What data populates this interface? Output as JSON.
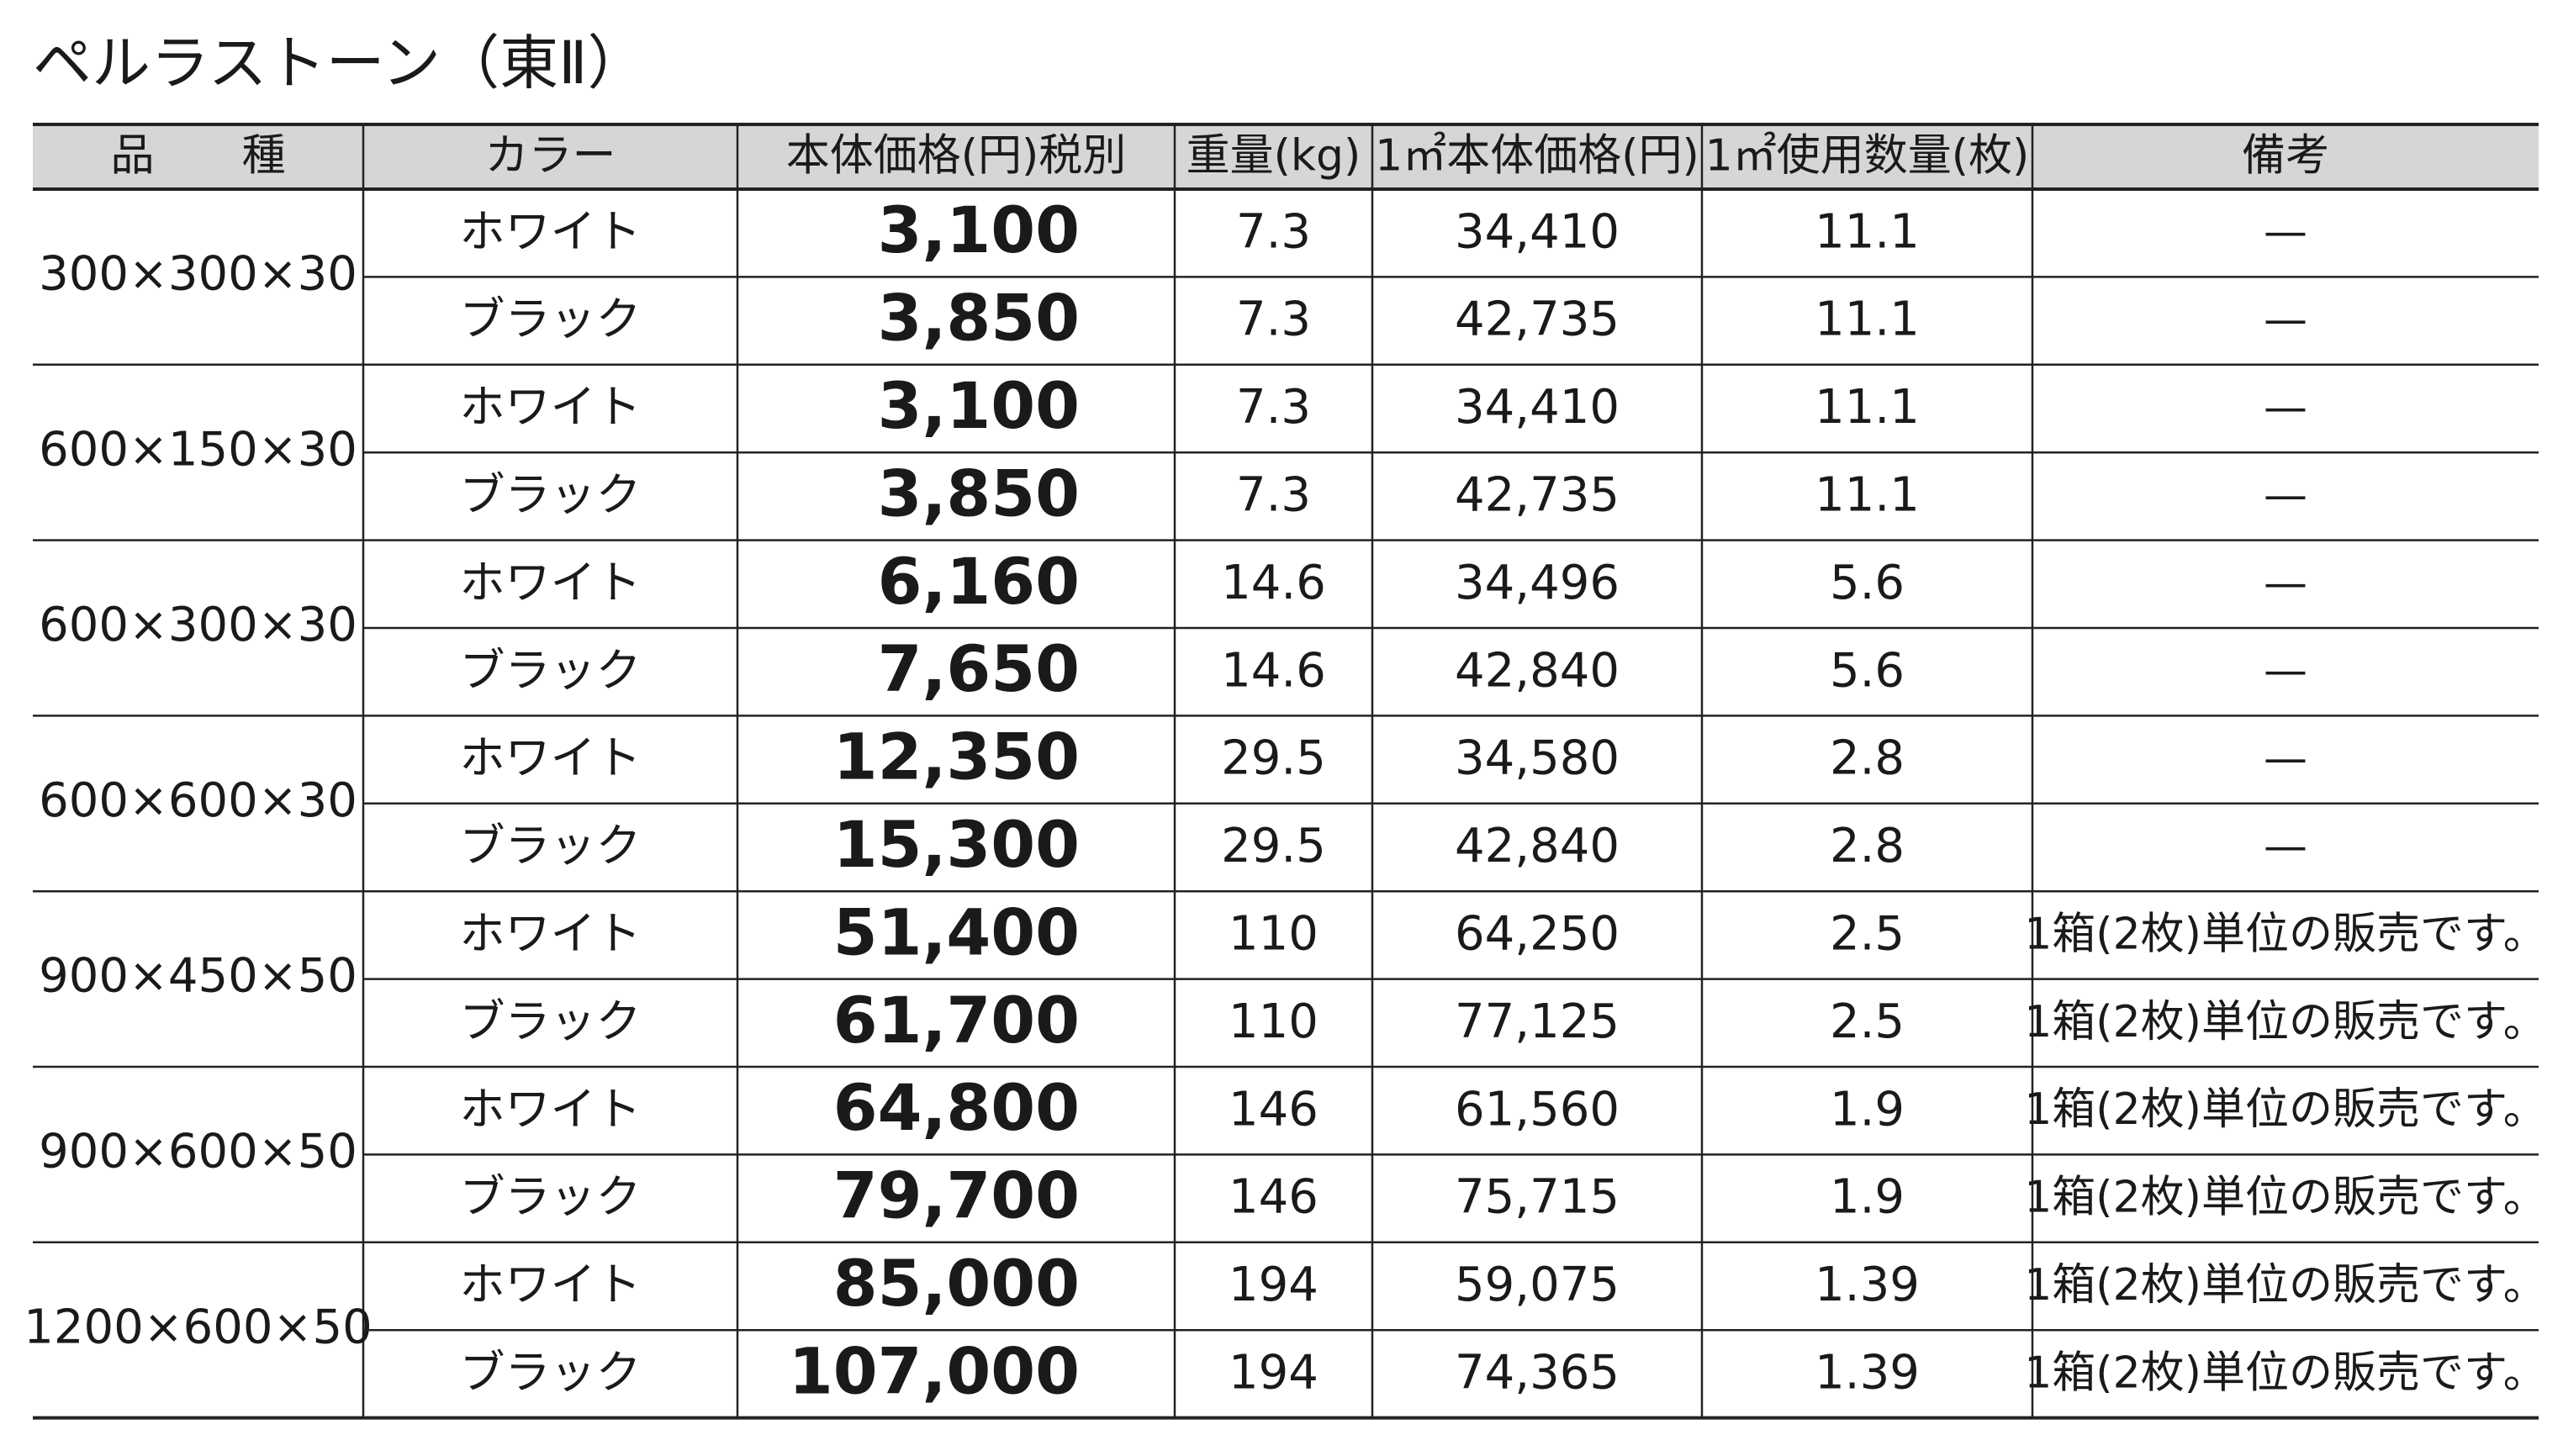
{
  "header": {
    "title": "ペルラストーン（東Ⅱ）"
  },
  "table": {
    "columns": [
      "品　　種",
      "カラー",
      "本体価格(円)税別",
      "重量(kg)",
      "1㎡本体価格(円)",
      "1㎡使用数量(枚)",
      "備考"
    ],
    "groups": [
      {
        "size": "300×300×30",
        "rows": [
          [
            "ホワイト",
            "3,100",
            "7.3",
            "34,410",
            "11.1",
            "—"
          ],
          [
            "ブラック",
            "3,850",
            "7.3",
            "42,735",
            "11.1",
            "—"
          ]
        ]
      },
      {
        "size": "600×150×30",
        "rows": [
          [
            "ホワイト",
            "3,100",
            "7.3",
            "34,410",
            "11.1",
            "—"
          ],
          [
            "ブラック",
            "3,850",
            "7.3",
            "42,735",
            "11.1",
            "—"
          ]
        ]
      },
      {
        "size": "600×300×30",
        "rows": [
          [
            "ホワイト",
            "6,160",
            "14.6",
            "34,496",
            "5.6",
            "—"
          ],
          [
            "ブラック",
            "7,650",
            "14.6",
            "42,840",
            "5.6",
            "—"
          ]
        ]
      },
      {
        "size": "600×600×30",
        "rows": [
          [
            "ホワイト",
            "12,350",
            "29.5",
            "34,580",
            "2.8",
            "—"
          ],
          [
            "ブラック",
            "15,300",
            "29.5",
            "42,840",
            "2.8",
            "—"
          ]
        ]
      },
      {
        "size": "900×450×50",
        "rows": [
          [
            "ホワイト",
            "51,400",
            "110",
            "64,250",
            "2.5",
            "1箱(2枚)単位の販売です。"
          ],
          [
            "ブラック",
            "61,700",
            "110",
            "77,125",
            "2.5",
            "1箱(2枚)単位の販売です。"
          ]
        ]
      },
      {
        "size": "900×600×50",
        "rows": [
          [
            "ホワイト",
            "64,800",
            "146",
            "61,560",
            "1.9",
            "1箱(2枚)単位の販売です。"
          ],
          [
            "ブラック",
            "79,700",
            "146",
            "75,715",
            "1.9",
            "1箱(2枚)単位の販売です。"
          ]
        ]
      },
      {
        "size": "1200×600×50",
        "rows": [
          [
            "ホワイト",
            "85,000",
            "194",
            "59,075",
            "1.39",
            "1箱(2枚)単位の販売です。"
          ],
          [
            "ブラック",
            "107,000",
            "194",
            "74,365",
            "1.39",
            "1箱(2枚)単位の販売です。"
          ]
        ]
      }
    ]
  }
}
